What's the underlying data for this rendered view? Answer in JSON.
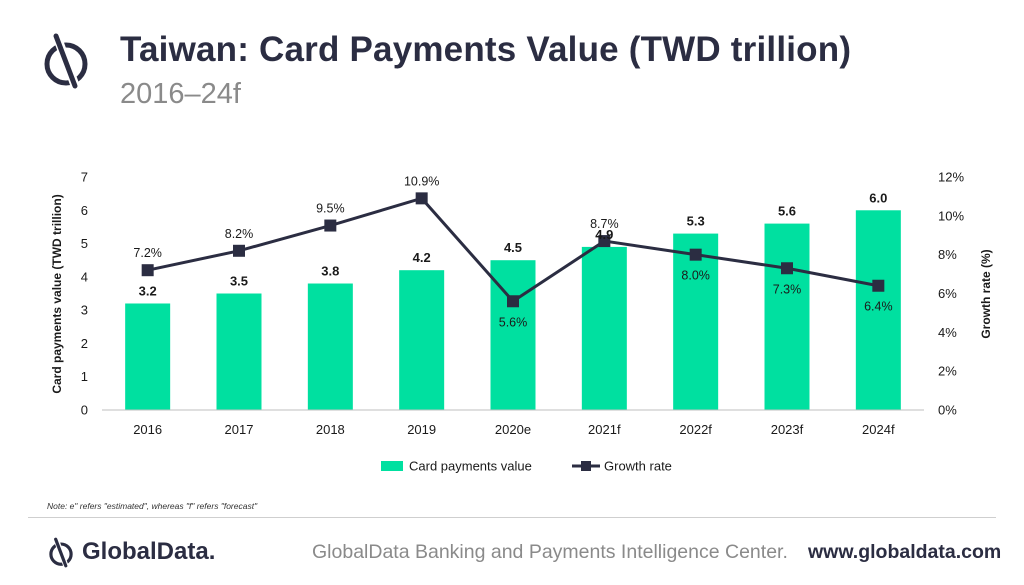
{
  "header": {
    "title": "Taiwan: Card Payments Value (TWD trillion)",
    "subtitle": "2016–24f"
  },
  "chart_data": {
    "type": "bar",
    "categories": [
      "2016",
      "2017",
      "2018",
      "2019",
      "2020e",
      "2021f",
      "2022f",
      "2023f",
      "2024f"
    ],
    "series": [
      {
        "name": "Card payments value",
        "type": "bar",
        "axis": "left",
        "values": [
          3.2,
          3.5,
          3.8,
          4.2,
          4.5,
          4.9,
          5.3,
          5.6,
          6.0
        ],
        "labels": [
          "3.2",
          "3.5",
          "3.8",
          "4.2",
          "4.5",
          "4.9",
          "5.3",
          "5.6",
          "6.0"
        ],
        "color": "#00e0a0"
      },
      {
        "name": "Growth rate",
        "type": "line",
        "axis": "right",
        "values": [
          7.2,
          8.2,
          9.5,
          10.9,
          5.6,
          8.7,
          8.0,
          7.3,
          6.4
        ],
        "labels": [
          "7.2%",
          "8.2%",
          "9.5%",
          "10.9%",
          "5.6%",
          "8.7%",
          "8.0%",
          "7.3%",
          "6.4%"
        ],
        "color": "#2b2d42"
      }
    ],
    "ylabel": "Card payments value (TWD trillion)",
    "y2label": "Growth rate (%)",
    "ylim": [
      0,
      7
    ],
    "y2lim": [
      0,
      12
    ],
    "yticks": [
      "0",
      "1",
      "2",
      "3",
      "4",
      "5",
      "6",
      "7"
    ],
    "y2ticks": [
      "0%",
      "2%",
      "4%",
      "6%",
      "8%",
      "10%",
      "12%"
    ],
    "grid": false,
    "legend_position": "bottom"
  },
  "footer": {
    "note": "Note: e\" refers \"estimated\",  whereas \"f\" refers \"forecast\"",
    "brand": "GlobalData.",
    "credit": "GlobalData Banking and Payments Intelligence Center.",
    "url": "www.globaldata.com"
  },
  "colors": {
    "accent": "#00e0a0",
    "dark": "#2b2d42",
    "muted": "#8a8a8a"
  }
}
